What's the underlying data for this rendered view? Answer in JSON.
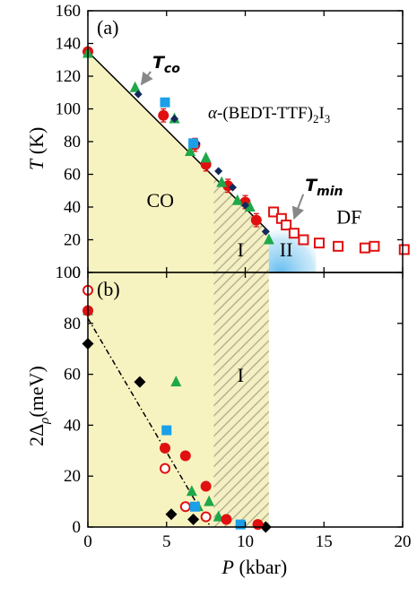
{
  "chart_data": [
    {
      "panel_label": "(a)",
      "type": "scatter",
      "compound_prefix": "α-",
      "compound_main": "(BEDT-TTF)",
      "compound_sub1": "2",
      "compound_mid": "I",
      "compound_sub2": "3",
      "ylabel_italic": "T",
      "ylabel_unit": " (K)",
      "xlim": [
        0,
        20
      ],
      "ylim": [
        0,
        160
      ],
      "yticks": [
        0,
        20,
        40,
        60,
        80,
        100,
        120,
        140,
        160
      ],
      "regions": [
        {
          "label": "CO",
          "x": 4.6,
          "y": 40
        },
        {
          "label": "I",
          "x": 9.7,
          "y": 10
        },
        {
          "label": "II",
          "x": 12.6,
          "y": 10
        },
        {
          "label": "DF",
          "x": 16.6,
          "y": 30
        }
      ],
      "shading": {
        "co_end": 8.0,
        "hatch_end": 11.5,
        "blue_end": 14.5
      },
      "annotations": [
        {
          "text": "T",
          "sub": "co",
          "text_x": 4.1,
          "text_y": 125,
          "arrow_to_x": 3.4,
          "arrow_to_y": 115
        },
        {
          "text": "T",
          "sub": "min",
          "text_x": 13.8,
          "text_y": 50,
          "arrow_to_x": 13.1,
          "arrow_to_y": 33
        }
      ],
      "fit_line": {
        "x": [
          0,
          11.5
        ],
        "y": [
          135,
          25
        ]
      },
      "series": [
        {
          "marker": "red-filled-circle",
          "color": "#e01010",
          "points": [
            [
              0,
              135
            ],
            [
              4.8,
              96
            ],
            [
              6.8,
              78
            ],
            [
              7.5,
              66
            ],
            [
              8.9,
              53
            ],
            [
              10,
              43
            ],
            [
              10.7,
              32
            ]
          ],
          "errors": [
            2,
            4,
            4,
            4,
            4,
            4,
            4
          ]
        },
        {
          "marker": "green-triangle",
          "color": "#1ea84a",
          "points": [
            [
              0,
              134
            ],
            [
              3,
              113
            ],
            [
              5.5,
              94
            ],
            [
              6.5,
              74
            ],
            [
              7.5,
              70
            ],
            [
              8.5,
              55
            ],
            [
              9.5,
              44
            ],
            [
              10.3,
              40
            ],
            [
              11.5,
              20
            ]
          ]
        },
        {
          "marker": "navy-diamond",
          "color": "#14285a",
          "points": [
            [
              3.2,
              109
            ],
            [
              5.5,
              94
            ],
            [
              6.9,
              79
            ],
            [
              8.3,
              62
            ],
            [
              9.2,
              52
            ],
            [
              10,
              41
            ],
            [
              11.3,
              25
            ]
          ]
        },
        {
          "marker": "blue-square",
          "color": "#1aa0e8",
          "points": [
            [
              4.9,
              104
            ],
            [
              6.7,
              79
            ]
          ]
        },
        {
          "marker": "red-open-square",
          "color": "#e01010",
          "points": [
            [
              11.8,
              37
            ],
            [
              12.3,
              33
            ],
            [
              12.6,
              29
            ],
            [
              13.1,
              24
            ],
            [
              13.7,
              20
            ],
            [
              14.7,
              18
            ],
            [
              15.9,
              16
            ],
            [
              17.6,
              15
            ],
            [
              18.2,
              16
            ],
            [
              20.1,
              14
            ]
          ]
        }
      ]
    },
    {
      "panel_label": "(b)",
      "type": "scatter",
      "ylabel": "2Δρ(meV)",
      "ylabel_base": "2Δ",
      "ylabel_sub": "ρ",
      "ylabel_unit": "(meV)",
      "xlabel_italic": "P",
      "xlabel_unit": " (kbar)",
      "xlim": [
        0,
        20
      ],
      "ylim": [
        0,
        100
      ],
      "xticks": [
        0,
        5,
        10,
        15,
        20
      ],
      "yticks": [
        0,
        20,
        40,
        60,
        80,
        100
      ],
      "regions": [
        {
          "label": "I",
          "x": 9.7,
          "y": 57
        }
      ],
      "shading": {
        "co_end": 8.0,
        "hatch_end": 11.5
      },
      "fit_line": {
        "x": [
          0,
          7.8
        ],
        "y": [
          82,
          0
        ]
      },
      "series": [
        {
          "marker": "black-diamond",
          "color": "#000000",
          "points": [
            [
              0,
              72
            ],
            [
              3.3,
              57
            ],
            [
              5.3,
              5
            ],
            [
              6.7,
              3
            ],
            [
              11.3,
              0
            ]
          ]
        },
        {
          "marker": "green-triangle",
          "color": "#1ea84a",
          "points": [
            [
              0,
              85
            ],
            [
              5.6,
              57
            ],
            [
              6.6,
              14
            ],
            [
              7.0,
              8
            ],
            [
              7.7,
              10
            ],
            [
              8.3,
              4
            ]
          ]
        },
        {
          "marker": "red-filled-circle",
          "color": "#e01010",
          "points": [
            [
              0,
              85
            ],
            [
              4.9,
              31
            ],
            [
              6.2,
              28
            ],
            [
              7.5,
              16
            ],
            [
              8.8,
              3
            ],
            [
              10.8,
              1
            ]
          ]
        },
        {
          "marker": "red-open-circle",
          "color": "#e01010",
          "points": [
            [
              0,
              93
            ],
            [
              4.9,
              23
            ],
            [
              6.2,
              8
            ],
            [
              7.5,
              4
            ]
          ]
        },
        {
          "marker": "blue-square",
          "color": "#1aa0e8",
          "points": [
            [
              5.0,
              38
            ],
            [
              6.8,
              8
            ],
            [
              9.7,
              1
            ]
          ]
        }
      ]
    }
  ]
}
